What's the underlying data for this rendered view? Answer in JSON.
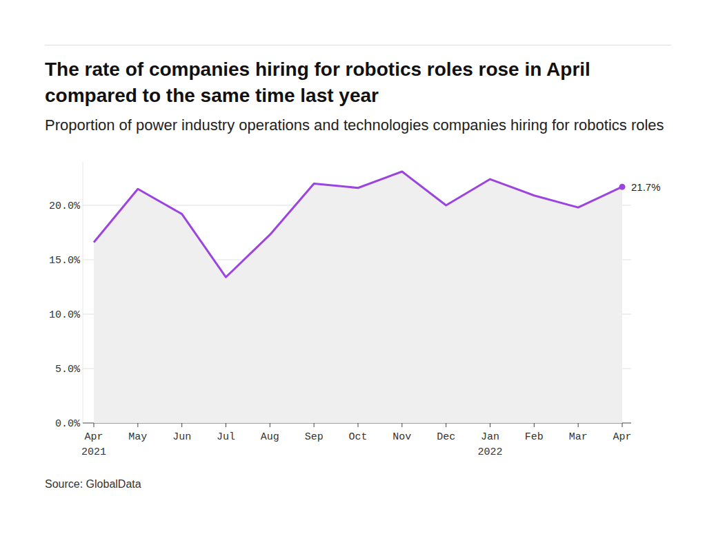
{
  "chart_data": {
    "type": "line",
    "title": "The rate of companies hiring for robotics roles rose in April compared to the same time last year",
    "subtitle": "Proportion of power industry operations and technologies companies hiring for robotics roles",
    "source": "Source: GlobalData",
    "categories": [
      "Apr 2021",
      "May",
      "Jun",
      "Jul",
      "Aug",
      "Sep",
      "Oct",
      "Nov",
      "Dec",
      "Jan 2022",
      "Feb",
      "Mar",
      "Apr"
    ],
    "values": [
      16.6,
      21.5,
      19.2,
      13.4,
      17.3,
      22.0,
      21.6,
      23.1,
      20.0,
      22.4,
      20.9,
      19.8,
      21.7
    ],
    "color": "#9b44e0",
    "ylim": [
      0,
      24
    ],
    "yticks": [
      {
        "value": 0,
        "label": "0.0%"
      },
      {
        "value": 5,
        "label": "5.0%"
      },
      {
        "value": 10,
        "label": "10.0%"
      },
      {
        "value": 15,
        "label": "15.0%"
      },
      {
        "value": 20,
        "label": "20.0%"
      }
    ],
    "grid": true,
    "annotations": [
      {
        "text": "21.7%",
        "category": "Apr",
        "value": 21.7
      }
    ]
  }
}
